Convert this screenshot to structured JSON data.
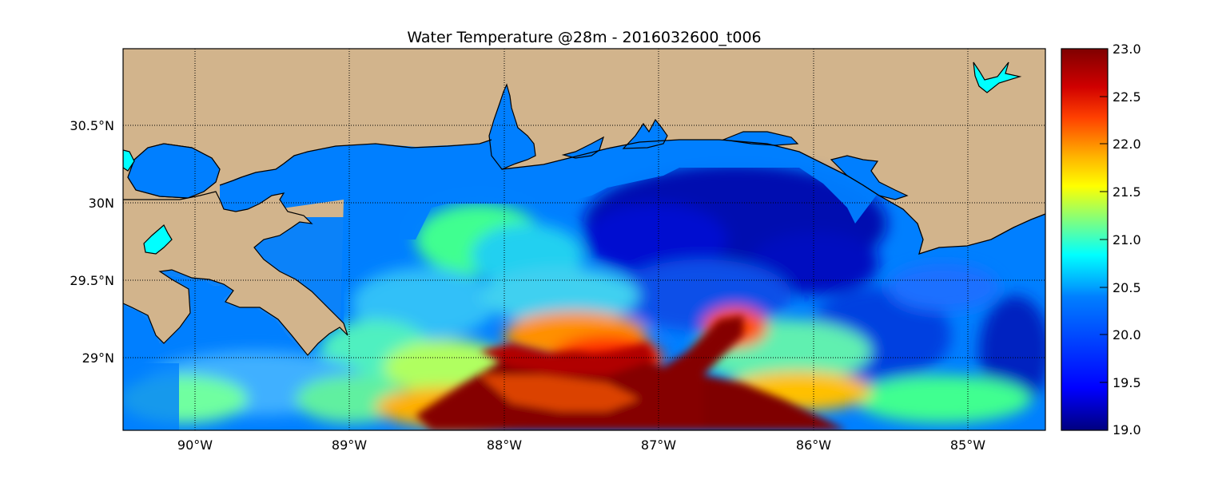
{
  "title": "Water Temperature @28m - 2016032600_t006",
  "map": {
    "longitude_ticks": [
      "90°W",
      "89°W",
      "88°W",
      "87°W",
      "86°W",
      "85°W"
    ],
    "latitude_ticks": [
      "30.5°N",
      "30N",
      "29.5°N",
      "29°N"
    ],
    "land_color": "#d2b48c",
    "shelf_water_color": "#007fff",
    "inland_lake_color": "#00ffff",
    "gridline_style": "dotted black"
  },
  "colorbar": {
    "ticks": [
      "23.0",
      "22.5",
      "22.0",
      "21.5",
      "21.0",
      "20.5",
      "20.0",
      "19.5",
      "19.0"
    ],
    "min": 19.0,
    "max": 23.0,
    "colormap": "jet"
  }
}
